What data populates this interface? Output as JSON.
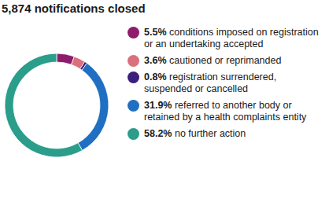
{
  "chart_data": {
    "type": "donut",
    "title": "5,874 notifications closed",
    "categories": [
      "conditions imposed on registration or an undertaking accepted",
      "cautioned or reprimanded",
      "registration surrendered, suspended or cancelled",
      "referred to another body or retained by a health complaints entity",
      "no further action"
    ],
    "values": [
      5.5,
      3.6,
      0.8,
      31.9,
      58.2
    ],
    "value_labels": [
      "5.5%",
      "3.6%",
      "0.8%",
      "31.9%",
      "58.2%"
    ],
    "colors": [
      "#8e1b6c",
      "#d9707b",
      "#3b1f7d",
      "#1f6fc2",
      "#2a9d8b"
    ],
    "legend": "right"
  }
}
